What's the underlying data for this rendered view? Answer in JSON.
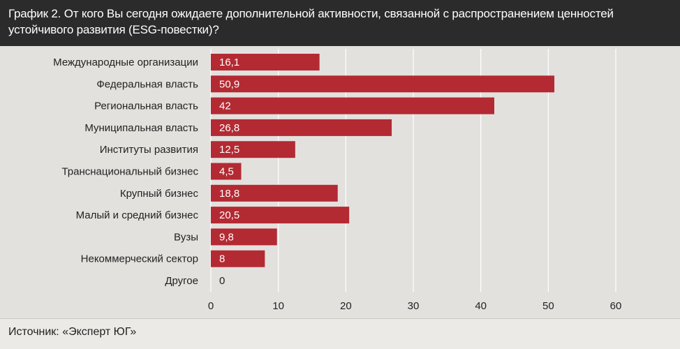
{
  "header": {
    "title": "График 2. От кого Вы сегодня ожидаете дополнительной активности, связанной с распространением ценностей устойчивого развития (ESG-повестки)?"
  },
  "footer": {
    "source": "Источник: «Эксперт ЮГ»"
  },
  "colors": {
    "bar": "#b32a33",
    "grid": "#ffffff",
    "header_bg": "#2b2b2b"
  },
  "chart_data": {
    "type": "bar",
    "orientation": "horizontal",
    "title": "График 2. От кого Вы сегодня ожидаете дополнительной активности, связанной с распространением ценностей устойчивого развития (ESG-повестки)?",
    "categories": [
      "Международные организации",
      "Федеральная власть",
      "Региональная власть",
      "Муниципальная власть",
      "Институты развития",
      "Транснациональный бизнес",
      "Крупный бизнес",
      "Малый и средний бизнес",
      "Вузы",
      "Некоммерческий сектор",
      "Другое"
    ],
    "values": [
      16.1,
      50.9,
      42,
      26.8,
      12.5,
      4.5,
      18.8,
      20.5,
      9.8,
      8,
      0
    ],
    "value_labels": [
      "16,1",
      "50,9",
      "42",
      "26,8",
      "12,5",
      "4,5",
      "18,8",
      "20,5",
      "9,8",
      "8",
      "0"
    ],
    "xlim": [
      0,
      60
    ],
    "xticks": [
      0,
      10,
      20,
      30,
      40,
      50,
      60
    ],
    "grid": true,
    "legend": "none",
    "xlabel": "",
    "ylabel": ""
  }
}
